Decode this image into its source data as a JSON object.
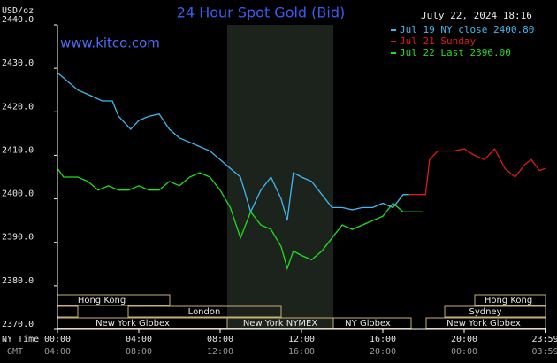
{
  "chart_data": {
    "type": "line",
    "title": "24 Hour Spot Gold (Bid)",
    "timestamp": "July 22, 2024 18:16",
    "website": "www.kitco.com",
    "y_label": "USD/oz",
    "x_label": "NY Time",
    "x2_label": "GMT",
    "ylim": [
      2370,
      2440
    ],
    "yticks": [
      {
        "value": 2370,
        "label": "2370.0"
      },
      {
        "value": 2380,
        "label": "2380.0"
      },
      {
        "value": 2390,
        "label": "2390.0"
      },
      {
        "value": 2400,
        "label": "2400.0"
      },
      {
        "value": 2410,
        "label": "2410.0"
      },
      {
        "value": 2420,
        "label": "2420.0"
      },
      {
        "value": 2430,
        "label": "2430.0"
      },
      {
        "value": 2440,
        "label": "2440.0"
      }
    ],
    "xlim": [
      0,
      24
    ],
    "xticks": [
      {
        "value": 0,
        "label": "00:00"
      },
      {
        "value": 4,
        "label": "04:00"
      },
      {
        "value": 8,
        "label": "08:00"
      },
      {
        "value": 12,
        "label": "12:00"
      },
      {
        "value": 16,
        "label": "16:00"
      },
      {
        "value": 20,
        "label": "20:00"
      },
      {
        "value": 23.98,
        "label": "23:59"
      }
    ],
    "x2ticks": [
      "04:00",
      "08:00",
      "12:00",
      "16:00",
      "20:00",
      "00:00",
      "03:59"
    ],
    "sessions": [
      "Hong Kong",
      "London",
      "New York Globex",
      "New York NYMEX",
      "NY Globex",
      "Hong Kong",
      "Sydney",
      "New York Globex"
    ],
    "series": [
      {
        "name": "Jul 19 NY close 2400.80",
        "color": "#40b8f0",
        "x": [
          0,
          0.5,
          1,
          1.5,
          2.2,
          2.7,
          3,
          3.6,
          4,
          4.5,
          5,
          5.5,
          6,
          6.5,
          7,
          7.5,
          8,
          8.5,
          9,
          9.5,
          10,
          10.5,
          11,
          11.3,
          11.6,
          12,
          12.5,
          13,
          13.5,
          14,
          14.5,
          15,
          15.5,
          16,
          16.5,
          17,
          17.3
        ],
        "values": [
          2429,
          2427,
          2425,
          2424,
          2422.5,
          2422.5,
          2419,
          2416,
          2418,
          2419,
          2419.5,
          2416,
          2414,
          2413,
          2412,
          2411,
          2409,
          2407,
          2405,
          2397,
          2402,
          2405,
          2400,
          2395,
          2406,
          2405,
          2404,
          2401,
          2398,
          2398,
          2397.5,
          2398,
          2398,
          2399,
          2398,
          2401,
          2401
        ]
      },
      {
        "name": "Jul 21 Sunday",
        "color": "#e01818",
        "x": [
          17.3,
          18.1,
          18.3,
          18.7,
          19.5,
          20,
          20.5,
          21,
          21.5,
          22,
          22.5,
          23,
          23.3,
          23.7,
          23.98
        ],
        "values": [
          2401,
          2401,
          2409,
          2411,
          2411,
          2411.5,
          2410,
          2409,
          2411.5,
          2407,
          2405,
          2408,
          2409,
          2406.5,
          2407
        ]
      },
      {
        "name": "Jul 22 Last 2396.00",
        "color": "#22dd22",
        "x": [
          0,
          0.3,
          1,
          1.5,
          2,
          2.5,
          3,
          3.5,
          4,
          4.5,
          5,
          5.5,
          6,
          6.5,
          7,
          7.5,
          8,
          8.5,
          9,
          9.5,
          10,
          10.5,
          11,
          11.3,
          11.6,
          12,
          12.5,
          13,
          13.5,
          14,
          14.5,
          15,
          15.5,
          16,
          16.5,
          17,
          17.5,
          18
        ],
        "values": [
          2407,
          2405,
          2405,
          2404,
          2402,
          2403,
          2402,
          2402,
          2403,
          2402,
          2402,
          2404,
          2403,
          2405,
          2406,
          2405,
          2402,
          2398,
          2391,
          2397,
          2394,
          2393,
          2389,
          2384,
          2388,
          2387,
          2386,
          2388,
          2391,
          2394,
          2393,
          2394,
          2395,
          2396,
          2399,
          2397,
          2397,
          2397
        ]
      }
    ]
  }
}
